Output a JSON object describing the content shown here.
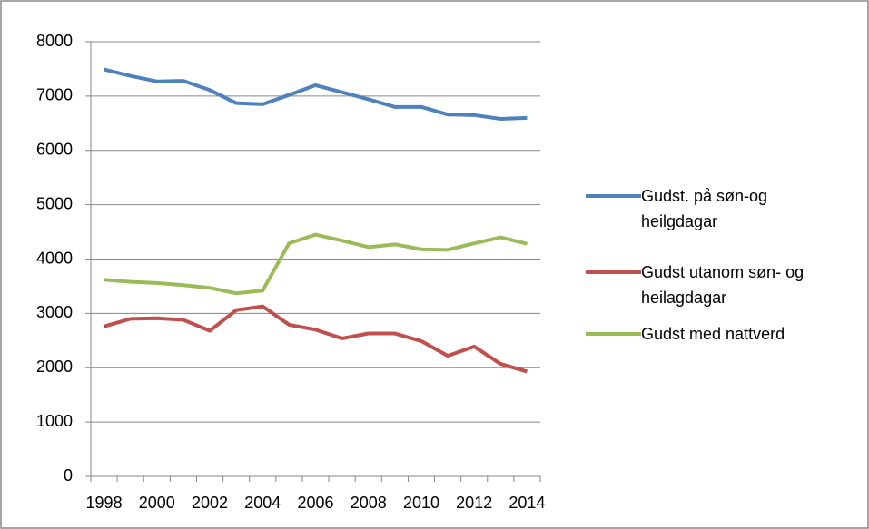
{
  "chart_data": {
    "type": "line",
    "categories": [
      "1998",
      null,
      "2000",
      null,
      "2002",
      null,
      "2004",
      null,
      "2006",
      null,
      "2008",
      null,
      "2010",
      null,
      "2012",
      null,
      "2014"
    ],
    "series": [
      {
        "name": "Gudst. på søn-og heilgdagar",
        "color": "#4f81bd",
        "values": [
          7490,
          7370,
          7270,
          7280,
          7110,
          6870,
          6850,
          7020,
          7200,
          7070,
          6940,
          6800,
          6800,
          6660,
          6650,
          6580,
          6600
        ]
      },
      {
        "name": "Gudst utanom søn- og heilagdagar",
        "color": "#c0504d",
        "values": [
          2760,
          2900,
          2910,
          2880,
          2680,
          3060,
          3130,
          2790,
          2700,
          2540,
          2630,
          2630,
          2490,
          2220,
          2390,
          2070,
          1930
        ]
      },
      {
        "name": "Gudst med nattverd",
        "color": "#9bbb59",
        "values": [
          3620,
          3580,
          3560,
          3520,
          3470,
          3370,
          3420,
          4290,
          4450,
          4340,
          4220,
          4270,
          4180,
          4170,
          4290,
          4400,
          4280
        ]
      }
    ],
    "ylim": [
      0,
      8000
    ],
    "yticks": [
      0,
      1000,
      2000,
      3000,
      4000,
      5000,
      6000,
      7000,
      8000
    ],
    "grid": true,
    "legend": "right"
  }
}
